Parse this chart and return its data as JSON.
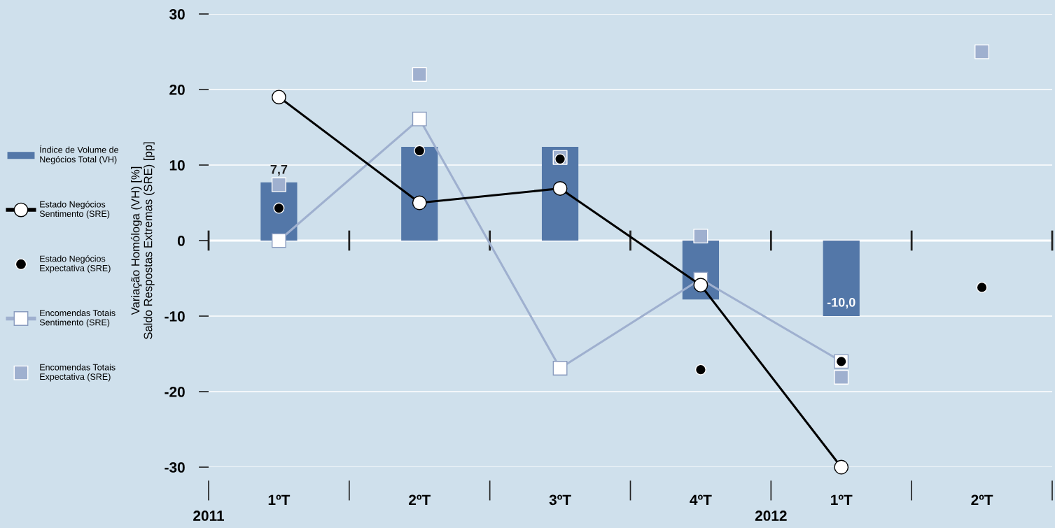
{
  "chart_data": {
    "type": "bar",
    "categories": [
      "1ºT",
      "2ºT",
      "3ºT",
      "4ºT",
      "1ºT",
      "2ºT"
    ],
    "ylabel": "Variação Homóloga (VH) [%]\nSaldo Respostas Extremas (SRE) [pp]",
    "annotations": [
      {
        "text": "2011"
      },
      {
        "text": "2012"
      }
    ],
    "series": [
      {
        "name": "Índice de Volume de\nNegócios Total (VH)",
        "color": "#5377a8",
        "values": [
          7.7,
          12.4,
          12.4,
          -7.8,
          -10.0,
          null
        ],
        "value_labels": [
          "7,7",
          null,
          null,
          null,
          "-10,0",
          null
        ]
      },
      {
        "name": "Estado Negócios\nSentimento (SRE)",
        "type": "line",
        "color": "#000000",
        "marker": "circle",
        "values": [
          19.0,
          5.0,
          6.9,
          -5.9,
          -30.0,
          null
        ]
      },
      {
        "name": "Estado Negócios\nExpectativa (SRE)",
        "type": "scatter",
        "color": "#000000",
        "marker": "circle",
        "values": [
          4.3,
          11.9,
          10.8,
          -17.1,
          -16.0,
          -6.2
        ]
      },
      {
        "name": "Encomendas Totais\nSentimento (SRE)",
        "type": "line",
        "color": "#9fb0cf",
        "marker": "square",
        "values": [
          0.0,
          16.1,
          -16.9,
          -5.1,
          -16.0,
          null
        ]
      },
      {
        "name": "Encomendas Totais\nExpectativa (SRE)",
        "type": "scatter",
        "color": "#9fb0cf",
        "marker": "square",
        "values": [
          7.4,
          22.0,
          11.0,
          0.6,
          -18.1,
          25.0
        ]
      }
    ],
    "ylim": [
      -30,
      30
    ],
    "yticks": [
      -30,
      -20,
      -10,
      0,
      10,
      20,
      30
    ],
    "grid": "y",
    "legend": "left"
  }
}
